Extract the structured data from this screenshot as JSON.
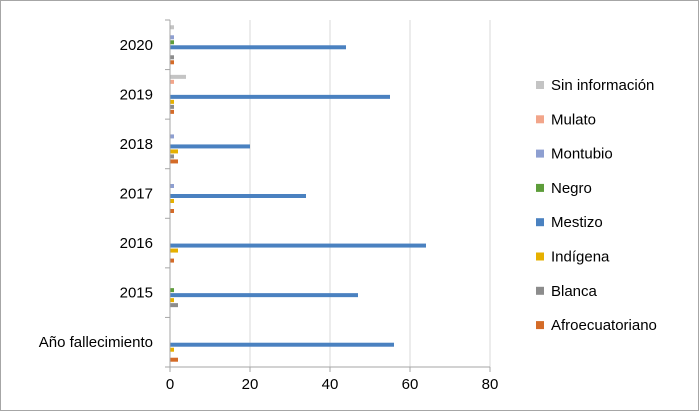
{
  "chart_data": {
    "type": "bar",
    "orientation": "horizontal",
    "categories": [
      "Año fallecimiento",
      "2015",
      "2016",
      "2017",
      "2018",
      "2019",
      "2020"
    ],
    "series": [
      {
        "name": "Afroecuatoriano",
        "color": "#d46b28",
        "values": [
          2,
          0,
          1,
          1,
          2,
          1,
          1
        ]
      },
      {
        "name": "Blanca",
        "color": "#8c8c8c",
        "values": [
          0,
          2,
          0,
          0,
          1,
          1,
          1
        ]
      },
      {
        "name": "Indígena",
        "color": "#e6b000",
        "values": [
          1,
          1,
          2,
          1,
          2,
          1,
          0
        ]
      },
      {
        "name": "Mestizo",
        "color": "#4a81c0",
        "values": [
          56,
          47,
          64,
          34,
          20,
          55,
          44
        ]
      },
      {
        "name": "Negro",
        "color": "#5d9d3a",
        "values": [
          0,
          1,
          0,
          0,
          0,
          0,
          1
        ]
      },
      {
        "name": "Montubio",
        "color": "#8e9fd1",
        "values": [
          0,
          0,
          0,
          1,
          1,
          0,
          1
        ]
      },
      {
        "name": "Mulato",
        "color": "#f2a58a",
        "values": [
          0,
          0,
          0,
          0,
          0,
          1,
          0
        ]
      },
      {
        "name": "Sin información",
        "color": "#c4c4c4",
        "values": [
          0,
          0,
          0,
          0,
          0,
          4,
          1
        ]
      }
    ],
    "xlim": [
      0,
      80
    ],
    "xticks": [
      0,
      20,
      40,
      60,
      80
    ],
    "grid": true,
    "legend_position": "right"
  }
}
